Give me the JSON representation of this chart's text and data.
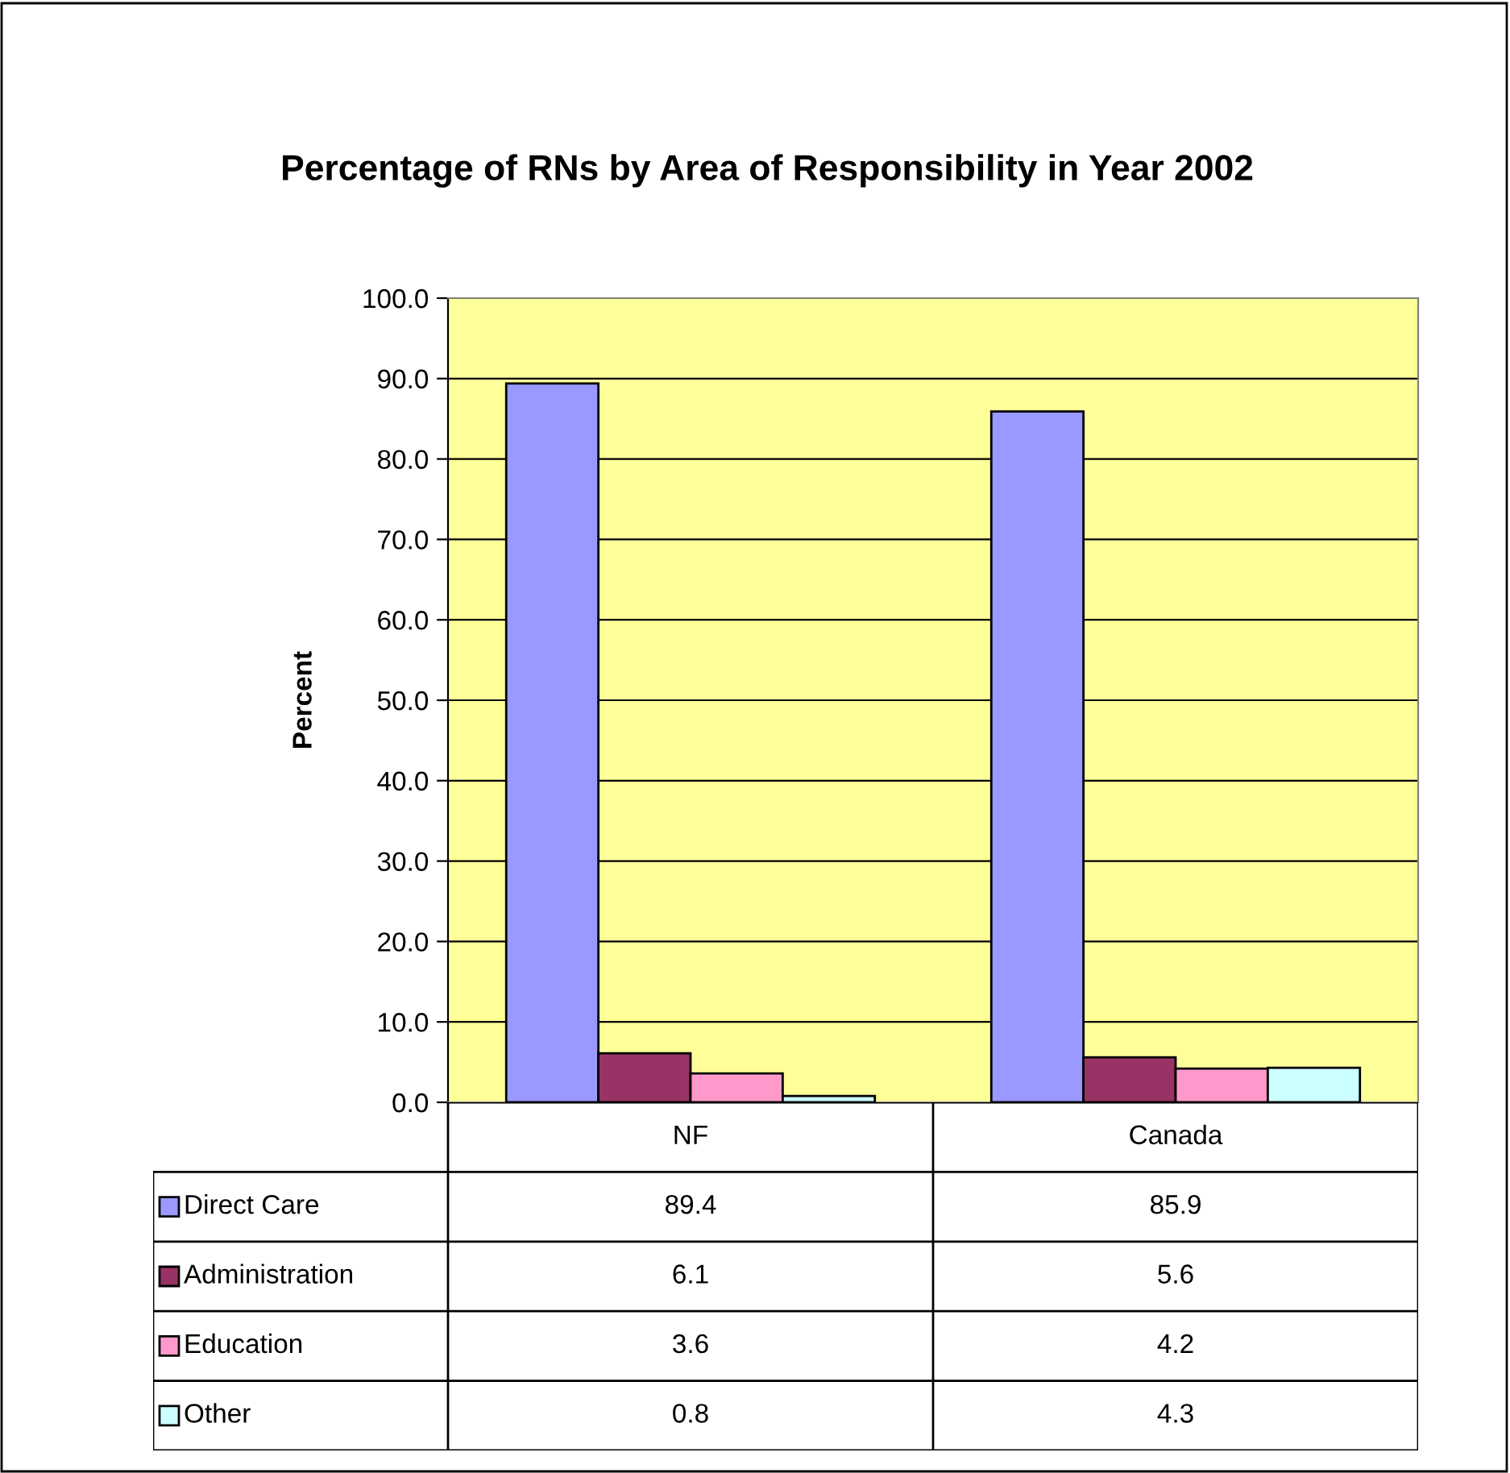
{
  "chart_data": {
    "type": "bar",
    "title": "Percentage of RNs by Area of Responsibility in Year 2002",
    "ylabel": "Percent",
    "categories": [
      "NF",
      "Canada"
    ],
    "series": [
      {
        "name": "Direct Care",
        "color": "#9999ff",
        "values": [
          89.4,
          85.9
        ]
      },
      {
        "name": "Administration",
        "color": "#993366",
        "values": [
          6.1,
          5.6
        ]
      },
      {
        "name": "Education",
        "color": "#ff99cc",
        "values": [
          3.6,
          4.2
        ]
      },
      {
        "name": "Other",
        "color": "#ccffff",
        "values": [
          0.8,
          4.3
        ]
      }
    ],
    "ylim": [
      0,
      100
    ],
    "yticks": [
      {
        "value": 0,
        "label": "0.0"
      },
      {
        "value": 10,
        "label": "10.0"
      },
      {
        "value": 20,
        "label": "20.0"
      },
      {
        "value": 30,
        "label": "30.0"
      },
      {
        "value": 40,
        "label": "40.0"
      },
      {
        "value": 50,
        "label": "50.0"
      },
      {
        "value": 60,
        "label": "60.0"
      },
      {
        "value": 70,
        "label": "70.0"
      },
      {
        "value": 80,
        "label": "80.0"
      },
      {
        "value": 90,
        "label": "90.0"
      },
      {
        "value": 100,
        "label": "100.0"
      }
    ],
    "grid": "y",
    "data_labels": true,
    "legend": "bottom"
  }
}
